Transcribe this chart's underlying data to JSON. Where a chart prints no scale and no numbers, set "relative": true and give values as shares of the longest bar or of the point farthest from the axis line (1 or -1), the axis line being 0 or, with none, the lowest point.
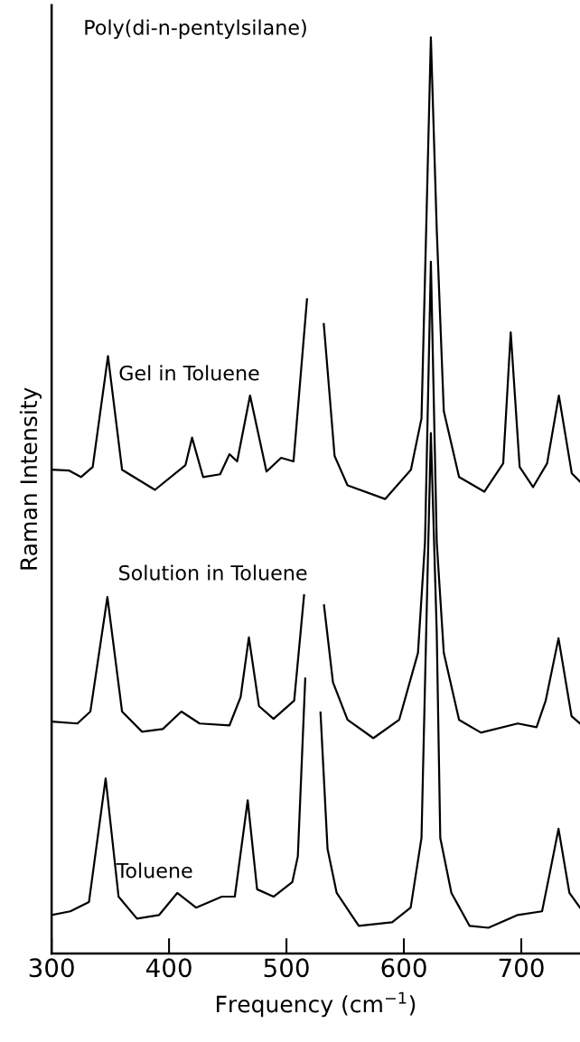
{
  "chart_data": {
    "type": "line",
    "title": "Poly(di-n-pentylsilane)",
    "xlabel": "Frequency (cm$^{−1}$)",
    "ylabel": "Raman Intensity",
    "relative": true,
    "xlim": [
      300,
      750
    ],
    "xticks": [
      300,
      400,
      500,
      600,
      700
    ],
    "tick_labels": "x",
    "series": [
      {
        "name": "Gel in Toluene",
        "color": "#000000",
        "x": [
          300,
          315,
          325,
          335,
          348,
          360,
          388,
          414,
          419.6,
          429,
          443.5,
          451.5,
          458,
          469,
          483,
          495.5,
          506,
          517.5,
          524,
          531.8,
          541,
          552,
          584,
          606,
          615,
          619,
          623,
          628,
          634,
          647,
          668.5,
          684.6,
          691,
          698.6,
          710,
          722,
          732,
          743,
          750
        ],
        "values": [
          0.528,
          0.527,
          0.52,
          0.531,
          0.652,
          0.528,
          0.506,
          0.533,
          0.563,
          0.52,
          0.523,
          0.545,
          0.537,
          0.609,
          0.526,
          0.541,
          0.537,
          0.714,
          null,
          0.687,
          0.543,
          0.511,
          0.496,
          0.528,
          0.584,
          0.79,
          1.0,
          0.79,
          0.592,
          0.52,
          0.504,
          0.535,
          0.678,
          0.531,
          0.509,
          0.535,
          0.609,
          0.524,
          0.515
        ]
      },
      {
        "name": "Solution in Toluene",
        "color": "#000000",
        "x": [
          300,
          322,
          333,
          347.5,
          360,
          377,
          394.7,
          410.5,
          426,
          451.5,
          461,
          468,
          476.6,
          489,
          506.6,
          515,
          523,
          532,
          539.6,
          552,
          574,
          596,
          612,
          618,
          623,
          628,
          634,
          647,
          665.6,
          697,
          713,
          720.8,
          731.7,
          742.8,
          750
        ],
        "values": [
          0.253,
          0.251,
          0.264,
          0.389,
          0.264,
          0.242,
          0.245,
          0.264,
          0.251,
          0.249,
          0.28,
          0.345,
          0.27,
          0.256,
          0.276,
          0.391,
          null,
          0.38,
          0.296,
          0.255,
          0.235,
          0.255,
          0.328,
          0.449,
          0.755,
          0.449,
          0.328,
          0.255,
          0.241,
          0.251,
          0.247,
          0.276,
          0.344,
          0.259,
          0.251
        ]
      },
      {
        "name": "Toluene",
        "color": "#000000",
        "x": [
          300,
          316,
          331.8,
          346,
          357,
          372.7,
          391.6,
          407,
          423,
          445,
          456,
          467,
          475,
          489,
          505,
          509.7,
          516,
          522,
          529,
          535,
          542.8,
          561.6,
          590,
          605.8,
          615,
          619,
          623,
          628,
          631,
          640.5,
          656,
          672,
          697,
          717.7,
          724,
          731.7,
          741,
          750
        ],
        "values": [
          0.042,
          0.046,
          0.056,
          0.191,
          0.062,
          0.038,
          0.042,
          0.066,
          0.05,
          0.062,
          0.062,
          0.167,
          0.07,
          0.062,
          0.078,
          0.106,
          0.3,
          null,
          0.263,
          0.114,
          0.066,
          0.03,
          0.034,
          0.05,
          0.126,
          0.35,
          0.568,
          0.35,
          0.126,
          0.066,
          0.03,
          0.028,
          0.042,
          0.046,
          0.086,
          0.136,
          0.066,
          0.05
        ]
      }
    ]
  }
}
